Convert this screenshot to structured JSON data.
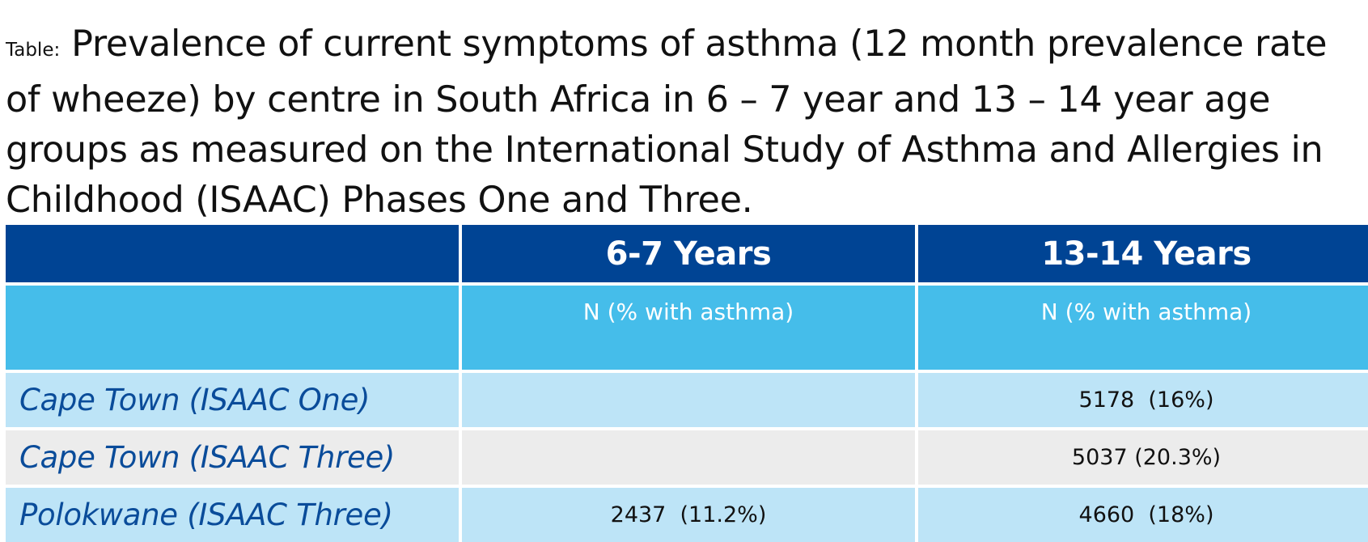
{
  "caption": {
    "prefix": "Table:",
    "text": "Prevalence of current symptoms of asthma (12 month prevalence rate of wheeze) by centre in South Africa in 6 – 7 year and 13 – 14 year age groups as measured on the International Study of Asthma and Allergies in Childhood (ISAAC) Phases One and Three."
  },
  "table": {
    "headers": [
      "",
      "6-7 Years",
      "13-14 Years"
    ],
    "subheaders": [
      "",
      "N (% with asthma)",
      "N (% with asthma)"
    ],
    "rows": [
      {
        "label": "Cape Town (ISAAC One)",
        "age_6_7": "",
        "age_13_14": "5178  (16%)",
        "band": "blue"
      },
      {
        "label": "Cape Town (ISAAC Three)",
        "age_6_7": "",
        "age_13_14": "5037 (20.3%)",
        "band": "grey"
      },
      {
        "label": "Polokwane (ISAAC Three)",
        "age_6_7": "2437  (11.2%)",
        "age_13_14": "4660  (18%)",
        "band": "blue"
      }
    ]
  },
  "colors": {
    "header_navy": "#004494",
    "subheader_cyan": "#45bdea",
    "row_light_blue": "#bde4f7",
    "row_light_grey": "#ececec",
    "row_label_blue": "#0a4c9a"
  }
}
